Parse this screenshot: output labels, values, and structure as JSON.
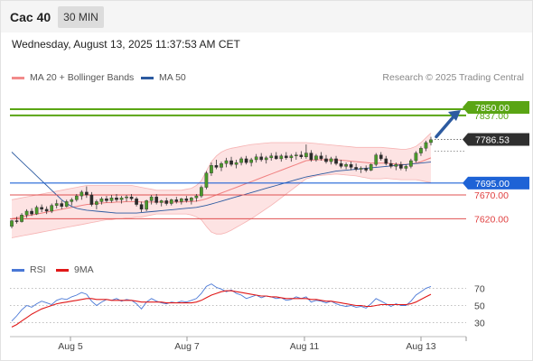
{
  "header": {
    "instrument": "Cac 40",
    "timeframe": "30 MIN"
  },
  "datetime": "Wednesday, August 13, 2025 11:37:53 AM CET",
  "legend": {
    "bollinger": {
      "label": "MA 20 + Bollinger Bands",
      "color": "#f28b8b"
    },
    "ma50": {
      "label": "MA 50",
      "color": "#2c5aa0"
    },
    "rsi": {
      "label": "RSI",
      "color": "#4a78d6"
    },
    "rsi_ma": {
      "label": "9MA",
      "color": "#e01818"
    }
  },
  "credit": "Research © 2025 Trading Central",
  "chart_data": {
    "type": "candlestick",
    "x_tick_labels": [
      "Aug 5",
      "Aug 7",
      "Aug 11",
      "Aug 13"
    ],
    "price_range": [
      7545,
      7905
    ],
    "current_price": "7786.53",
    "levels": [
      {
        "label": "7850.00",
        "value": 7850,
        "kind": "target",
        "color": "#5aa514"
      },
      {
        "label": "7837.00",
        "value": 7837,
        "kind": "target",
        "color": "#5aa514"
      },
      {
        "label": "7695.00",
        "value": 7695,
        "kind": "pivot",
        "color": "#1e63d6"
      },
      {
        "label": "7670.00",
        "value": 7670,
        "kind": "support",
        "color": "#e05050"
      },
      {
        "label": "7620.00",
        "value": 7620,
        "kind": "support",
        "color": "#e05050"
      }
    ],
    "ohlc": [
      [
        7604,
        7618,
        7600,
        7616
      ],
      [
        7616,
        7624,
        7610,
        7614
      ],
      [
        7614,
        7632,
        7612,
        7628
      ],
      [
        7628,
        7640,
        7622,
        7636
      ],
      [
        7636,
        7642,
        7626,
        7630
      ],
      [
        7630,
        7648,
        7628,
        7644
      ],
      [
        7644,
        7650,
        7634,
        7640
      ],
      [
        7640,
        7646,
        7630,
        7636
      ],
      [
        7636,
        7652,
        7632,
        7648
      ],
      [
        7648,
        7660,
        7642,
        7652
      ],
      [
        7652,
        7658,
        7640,
        7646
      ],
      [
        7646,
        7660,
        7644,
        7656
      ],
      [
        7656,
        7664,
        7648,
        7660
      ],
      [
        7660,
        7672,
        7656,
        7668
      ],
      [
        7668,
        7680,
        7660,
        7676
      ],
      [
        7676,
        7688,
        7664,
        7670
      ],
      [
        7670,
        7676,
        7646,
        7650
      ],
      [
        7650,
        7660,
        7640,
        7656
      ],
      [
        7656,
        7666,
        7650,
        7662
      ],
      [
        7662,
        7668,
        7654,
        7658
      ],
      [
        7658,
        7670,
        7654,
        7664
      ],
      [
        7664,
        7672,
        7656,
        7660
      ],
      [
        7660,
        7668,
        7652,
        7664
      ],
      [
        7664,
        7670,
        7656,
        7666
      ],
      [
        7666,
        7672,
        7658,
        7662
      ],
      [
        7662,
        7666,
        7646,
        7650
      ],
      [
        7650,
        7656,
        7634,
        7640
      ],
      [
        7640,
        7660,
        7636,
        7658
      ],
      [
        7658,
        7670,
        7650,
        7666
      ],
      [
        7666,
        7672,
        7650,
        7654
      ],
      [
        7654,
        7660,
        7646,
        7658
      ],
      [
        7658,
        7664,
        7648,
        7652
      ],
      [
        7652,
        7662,
        7648,
        7660
      ],
      [
        7660,
        7666,
        7652,
        7656
      ],
      [
        7656,
        7664,
        7650,
        7662
      ],
      [
        7662,
        7668,
        7654,
        7658
      ],
      [
        7658,
        7666,
        7650,
        7664
      ],
      [
        7664,
        7672,
        7656,
        7668
      ],
      [
        7668,
        7690,
        7664,
        7686
      ],
      [
        7686,
        7720,
        7682,
        7716
      ],
      [
        7716,
        7738,
        7710,
        7732
      ],
      [
        7732,
        7744,
        7724,
        7728
      ],
      [
        7728,
        7740,
        7720,
        7736
      ],
      [
        7736,
        7748,
        7728,
        7742
      ],
      [
        7742,
        7750,
        7730,
        7734
      ],
      [
        7734,
        7744,
        7726,
        7738
      ],
      [
        7738,
        7750,
        7732,
        7746
      ],
      [
        7746,
        7752,
        7734,
        7738
      ],
      [
        7738,
        7748,
        7730,
        7744
      ],
      [
        7744,
        7756,
        7738,
        7750
      ],
      [
        7750,
        7758,
        7740,
        7744
      ],
      [
        7744,
        7752,
        7736,
        7748
      ],
      [
        7748,
        7758,
        7742,
        7752
      ],
      [
        7752,
        7760,
        7744,
        7746
      ],
      [
        7746,
        7756,
        7740,
        7752
      ],
      [
        7752,
        7760,
        7744,
        7748
      ],
      [
        7748,
        7756,
        7740,
        7752
      ],
      [
        7752,
        7760,
        7744,
        7754
      ],
      [
        7754,
        7762,
        7746,
        7750
      ],
      [
        7750,
        7776,
        7746,
        7758
      ],
      [
        7758,
        7764,
        7740,
        7744
      ],
      [
        7744,
        7756,
        7740,
        7752
      ],
      [
        7752,
        7760,
        7742,
        7746
      ],
      [
        7746,
        7754,
        7736,
        7740
      ],
      [
        7740,
        7750,
        7734,
        7746
      ],
      [
        7746,
        7752,
        7732,
        7736
      ],
      [
        7736,
        7744,
        7726,
        7730
      ],
      [
        7730,
        7738,
        7724,
        7734
      ],
      [
        7734,
        7740,
        7722,
        7728
      ],
      [
        7728,
        7736,
        7720,
        7724
      ],
      [
        7724,
        7730,
        7716,
        7726
      ],
      [
        7726,
        7732,
        7718,
        7722
      ],
      [
        7722,
        7736,
        7720,
        7734
      ],
      [
        7734,
        7758,
        7730,
        7754
      ],
      [
        7754,
        7760,
        7742,
        7746
      ],
      [
        7746,
        7752,
        7732,
        7736
      ],
      [
        7736,
        7744,
        7726,
        7730
      ],
      [
        7730,
        7738,
        7722,
        7734
      ],
      [
        7734,
        7740,
        7722,
        7726
      ],
      [
        7726,
        7734,
        7720,
        7730
      ],
      [
        7730,
        7746,
        7726,
        7742
      ],
      [
        7742,
        7762,
        7738,
        7758
      ],
      [
        7758,
        7772,
        7752,
        7768
      ],
      [
        7768,
        7784,
        7762,
        7780
      ],
      [
        7780,
        7792,
        7774,
        7786
      ]
    ],
    "ma20": [
      7620,
      7622,
      7624,
      7626,
      7628,
      7630,
      7632,
      7634,
      7636,
      7638,
      7640,
      7642,
      7644,
      7646,
      7648,
      7650,
      7651,
      7652,
      7653,
      7654,
      7654,
      7655,
      7655,
      7656,
      7656,
      7656,
      7655,
      7655,
      7655,
      7655,
      7655,
      7655,
      7655,
      7655,
      7655,
      7656,
      7656,
      7657,
      7659,
      7662,
      7666,
      7670,
      7674,
      7678,
      7682,
      7686,
      7690,
      7694,
      7698,
      7702,
      7706,
      7710,
      7714,
      7718,
      7722,
      7726,
      7730,
      7734,
      7738,
      7742,
      7743,
      7744,
      7744,
      7744,
      7744,
      7744,
      7743,
      7742,
      7741,
      7740,
      7739,
      7738,
      7737,
      7737,
      7737,
      7737,
      7736,
      7735,
      7734,
      7734,
      7735,
      7737,
      7740,
      7744,
      7748
    ],
    "bb_upper": [
      7660,
      7662,
      7664,
      7666,
      7668,
      7670,
      7672,
      7674,
      7676,
      7678,
      7680,
      7682,
      7684,
      7686,
      7688,
      7690,
      7690,
      7690,
      7690,
      7690,
      7690,
      7690,
      7690,
      7690,
      7690,
      7688,
      7686,
      7684,
      7682,
      7680,
      7680,
      7680,
      7680,
      7680,
      7680,
      7682,
      7684,
      7690,
      7700,
      7720,
      7740,
      7752,
      7760,
      7765,
      7768,
      7770,
      7772,
      7774,
      7776,
      7777,
      7778,
      7779,
      7780,
      7780,
      7780,
      7780,
      7780,
      7780,
      7780,
      7780,
      7779,
      7778,
      7777,
      7776,
      7775,
      7774,
      7773,
      7772,
      7771,
      7770,
      7770,
      7770,
      7770,
      7770,
      7770,
      7769,
      7768,
      7767,
      7766,
      7766,
      7768,
      7772,
      7780,
      7790,
      7800
    ],
    "bb_lower": [
      7580,
      7582,
      7584,
      7586,
      7588,
      7590,
      7592,
      7594,
      7596,
      7598,
      7600,
      7602,
      7604,
      7606,
      7608,
      7610,
      7612,
      7614,
      7616,
      7618,
      7618,
      7620,
      7620,
      7622,
      7622,
      7624,
      7624,
      7626,
      7628,
      7630,
      7630,
      7630,
      7630,
      7630,
      7630,
      7630,
      7628,
      7624,
      7618,
      7604,
      7592,
      7588,
      7588,
      7591,
      7596,
      7602,
      7608,
      7614,
      7620,
      7627,
      7634,
      7641,
      7648,
      7656,
      7664,
      7672,
      7680,
      7688,
      7696,
      7704,
      7707,
      7710,
      7711,
      7712,
      7713,
      7714,
      7713,
      7712,
      7711,
      7710,
      7708,
      7706,
      7704,
      7704,
      7704,
      7705,
      7704,
      7703,
      7702,
      7702,
      7702,
      7702,
      7700,
      7698,
      7696
    ],
    "ma50": [
      7760,
      7750,
      7740,
      7730,
      7720,
      7710,
      7700,
      7690,
      7680,
      7670,
      7660,
      7652,
      7646,
      7642,
      7640,
      7638,
      7637,
      7636,
      7635,
      7634,
      7633,
      7632,
      7632,
      7632,
      7632,
      7632,
      7633,
      7634,
      7635,
      7636,
      7637,
      7638,
      7639,
      7640,
      7641,
      7642,
      7643,
      7644,
      7646,
      7648,
      7651,
      7654,
      7657,
      7660,
      7663,
      7666,
      7669,
      7672,
      7675,
      7678,
      7681,
      7684,
      7687,
      7690,
      7693,
      7696,
      7699,
      7702,
      7705,
      7708,
      7710,
      7712,
      7714,
      7716,
      7718,
      7720,
      7721,
      7722,
      7723,
      7724,
      7725,
      7726,
      7727,
      7728,
      7729,
      7730,
      7731,
      7732,
      7733,
      7734,
      7735,
      7736,
      7737,
      7738,
      7739
    ],
    "rsi_range": [
      15,
      85
    ],
    "rsi_ticks": [
      "70",
      "50",
      "30"
    ],
    "rsi": [
      32,
      38,
      45,
      50,
      48,
      52,
      55,
      53,
      51,
      56,
      58,
      57,
      60,
      62,
      65,
      63,
      55,
      50,
      54,
      57,
      56,
      58,
      55,
      57,
      56,
      52,
      46,
      54,
      58,
      55,
      53,
      52,
      54,
      53,
      55,
      54,
      56,
      58,
      64,
      72,
      75,
      71,
      69,
      66,
      68,
      64,
      62,
      58,
      60,
      62,
      59,
      61,
      60,
      58,
      59,
      56,
      57,
      60,
      58,
      60,
      54,
      56,
      55,
      53,
      55,
      52,
      50,
      49,
      50,
      48,
      49,
      47,
      52,
      58,
      55,
      52,
      49,
      52,
      50,
      50,
      55,
      62,
      66,
      70,
      72
    ],
    "rsi_ma": [
      25,
      28,
      32,
      36,
      40,
      43,
      46,
      48,
      50,
      52,
      53,
      54,
      55,
      56,
      57,
      58,
      58,
      57,
      57,
      57,
      56,
      56,
      56,
      56,
      56,
      55,
      54,
      54,
      54,
      54,
      54,
      53,
      53,
      53,
      53,
      53,
      53,
      54,
      56,
      59,
      62,
      64,
      66,
      67,
      67,
      66,
      65,
      64,
      63,
      62,
      61,
      61,
      60,
      60,
      59,
      58,
      58,
      58,
      58,
      58,
      57,
      57,
      56,
      55,
      55,
      54,
      53,
      52,
      51,
      50,
      50,
      49,
      49,
      50,
      51,
      51,
      51,
      51,
      51,
      51,
      52,
      54,
      57,
      60,
      63
    ]
  }
}
